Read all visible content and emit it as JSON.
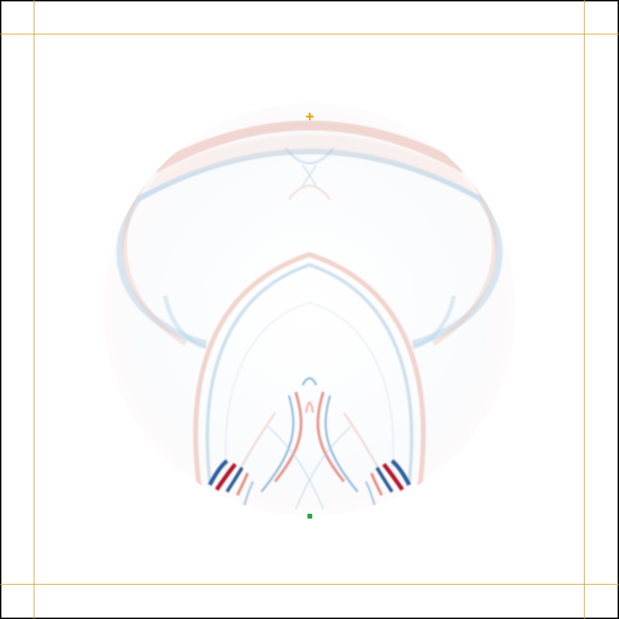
{
  "colors": {
    "border": "#000000",
    "pml_lines": "#d4a017",
    "wave_positive": "#b2182b",
    "wave_negative": "#2166ac",
    "source_marker": "#f39c12",
    "receiver_marker": "#22aa44",
    "background": "#ffffff"
  },
  "icons": {
    "source": "plus-marker",
    "receiver": "square-marker"
  },
  "wavefield": {
    "colormap": "red-white-blue",
    "domain_shape": "circle"
  }
}
